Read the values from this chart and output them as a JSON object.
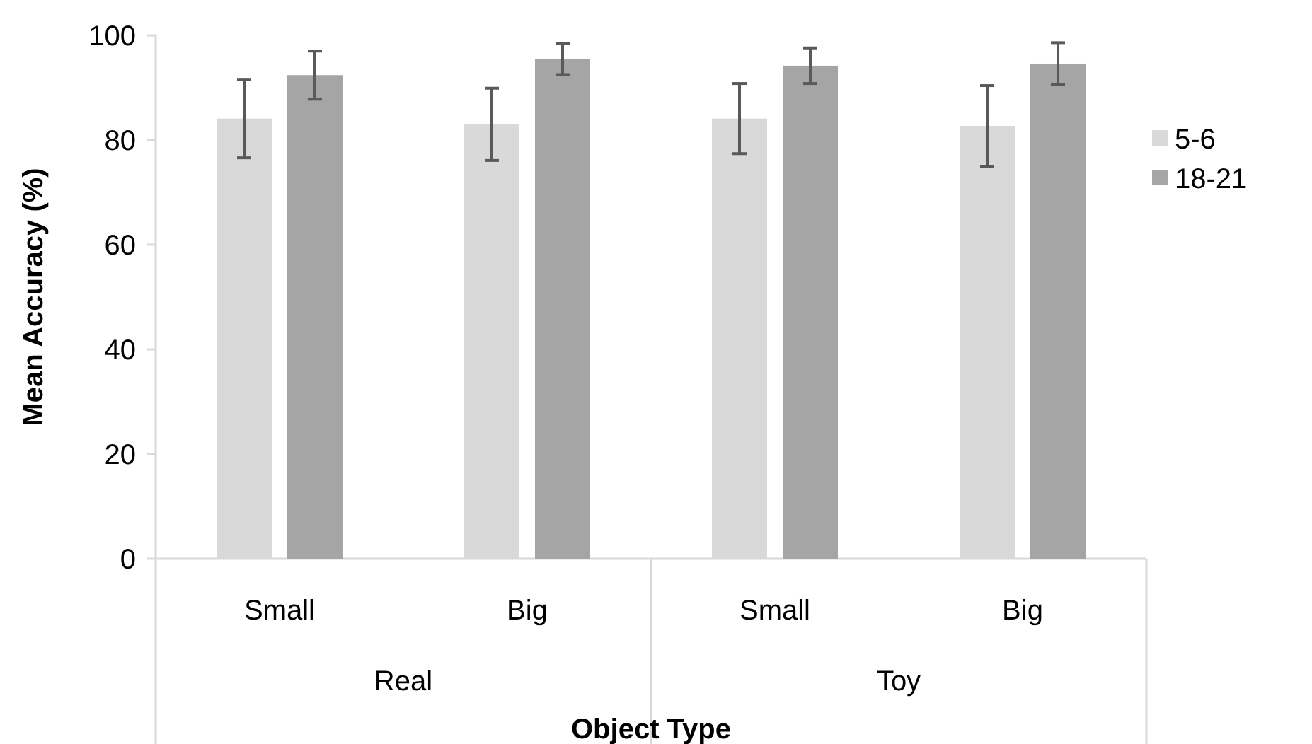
{
  "chart_data": {
    "type": "bar",
    "xlabel": "Object Type",
    "ylabel": "Mean Accuracy (%)",
    "categories": [
      "Small",
      "Big",
      "Small",
      "Big"
    ],
    "annotations": [
      "Real",
      "Toy"
    ],
    "series": [
      {
        "name": "5-6",
        "color": "#d9d9d9",
        "values": [
          84.1,
          83.0,
          84.1,
          82.7
        ],
        "errors": [
          7.5,
          6.9,
          6.7,
          7.7
        ]
      },
      {
        "name": "18-21",
        "color": "#a5a5a5",
        "values": [
          92.4,
          95.5,
          94.2,
          94.6
        ],
        "errors": [
          4.6,
          3.0,
          3.4,
          4.0
        ]
      }
    ],
    "ylim": [
      0,
      100
    ],
    "yticks": [
      0,
      20,
      40,
      60,
      80,
      100
    ],
    "grid": false,
    "legend": "right"
  }
}
